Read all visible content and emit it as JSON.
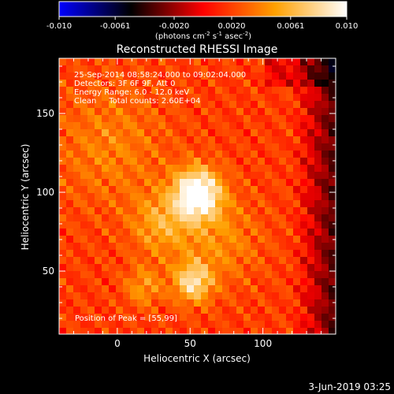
{
  "colorbar": {
    "ticks": [
      "-0.010",
      "-0.0061",
      "-0.0020",
      "0.0020",
      "0.0061",
      "0.010"
    ],
    "tick_values": [
      -0.01,
      -0.0061,
      -0.002,
      0.002,
      0.0061,
      0.01
    ],
    "range": [
      -0.01,
      0.01
    ],
    "unit_base": "(photons cm",
    "unit_exp1": "-2",
    "unit_mid": " s",
    "unit_exp2": "-1",
    "unit_mid2": " asec",
    "unit_exp3": "-2",
    "unit_end": ")",
    "colors": [
      "#0000ff",
      "#000000",
      "#ff0000",
      "#ffa000",
      "#ffffff"
    ]
  },
  "chart_data": {
    "type": "heatmap",
    "title": "Reconstructed RHESSI Image",
    "xlabel": "Heliocentric X (arcsec)",
    "ylabel": "Heliocentric Y (arcsec)",
    "xlim": [
      -40,
      150
    ],
    "ylim": [
      10,
      185
    ],
    "xticks": [
      0,
      50,
      100
    ],
    "yticks": [
      50,
      100,
      150
    ],
    "annotations": {
      "time": "25-Sep-2014 08:58:24.000 to 09:02:04.000",
      "detectors": "Detectors: 3F 6F 9F, Att 0",
      "energy": "Energy Range: 6.0 - 12.0 keV",
      "clean": "Clean     Total counts: 2.60E+04",
      "peak": "Position of Peak = [55,99]"
    },
    "peak": [
      55,
      99
    ],
    "sources": [
      {
        "x": 55,
        "y": 99,
        "sigma": 11,
        "amp": 0.01
      },
      {
        "x": 52,
        "y": 43,
        "sigma": 9,
        "amp": 0.0062
      },
      {
        "x": 30,
        "y": 80,
        "sigma": 14,
        "amp": 0.0035
      },
      {
        "x": 18,
        "y": 40,
        "sigma": 9,
        "amp": 0.003
      },
      {
        "x": -5,
        "y": 130,
        "sigma": 28,
        "amp": 0.0022
      },
      {
        "x": 70,
        "y": 70,
        "sigma": 20,
        "amp": 0.0025
      }
    ]
  },
  "footer": {
    "date": "3-Jun-2019 03:25"
  }
}
